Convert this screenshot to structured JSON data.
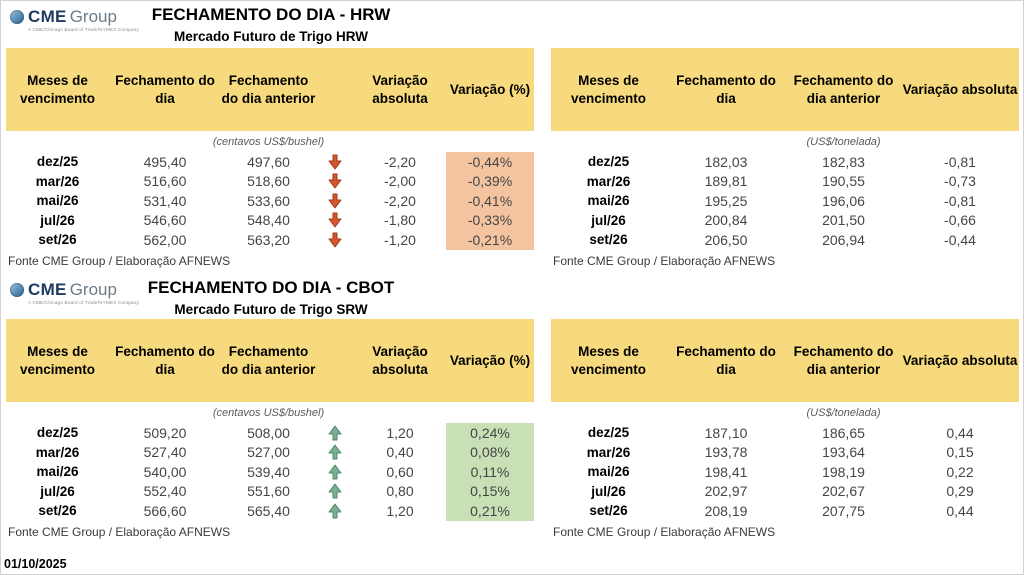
{
  "page": {
    "date": "01/10/2025"
  },
  "colors": {
    "header_bg": "#F6DA7D",
    "pct_down_bg": "#F4C4A0",
    "pct_up_bg": "#C9DFB6",
    "arrow_down": "#D4562E",
    "arrow_down_border": "#9E3B1B",
    "arrow_up": "#7BAE92",
    "arrow_up_border": "#4E8A6C"
  },
  "logo": {
    "cme": "CME",
    "group": "Group",
    "tagline": "A CME/Chicago Board of Trade/NYMEX Company"
  },
  "sections": [
    {
      "title": "FECHAMENTO DO DIA - HRW",
      "subtitle": "Mercado Futuro de Trigo HRW",
      "left_table": {
        "headers": [
          "Meses de vencimento",
          "Fechamento do dia",
          "Fechamento do dia anterior",
          "Variação absoluta",
          "Variação (%)"
        ],
        "unit": "(centavos US$/bushel)",
        "trend": "down",
        "source": "Fonte CME Group / Elaboração AFNEWS",
        "rows": [
          {
            "month": "dez/25",
            "close": "495,40",
            "prev": "497,60",
            "abs": "-2,20",
            "pct": "-0,44%"
          },
          {
            "month": "mar/26",
            "close": "516,60",
            "prev": "518,60",
            "abs": "-2,00",
            "pct": "-0,39%"
          },
          {
            "month": "mai/26",
            "close": "531,40",
            "prev": "533,60",
            "abs": "-2,20",
            "pct": "-0,41%"
          },
          {
            "month": "jul/26",
            "close": "546,60",
            "prev": "548,40",
            "abs": "-1,80",
            "pct": "-0,33%"
          },
          {
            "month": "set/26",
            "close": "562,00",
            "prev": "563,20",
            "abs": "-1,20",
            "pct": "-0,21%"
          }
        ]
      },
      "right_table": {
        "headers": [
          "Meses de vencimento",
          "Fechamento do dia",
          "Fechamento do dia anterior",
          "Variação absoluta"
        ],
        "unit": "(US$/tonelada)",
        "source": "Fonte CME Group / Elaboração AFNEWS",
        "rows": [
          {
            "month": "dez/25",
            "close": "182,03",
            "prev": "182,83",
            "abs": "-0,81"
          },
          {
            "month": "mar/26",
            "close": "189,81",
            "prev": "190,55",
            "abs": "-0,73"
          },
          {
            "month": "mai/26",
            "close": "195,25",
            "prev": "196,06",
            "abs": "-0,81"
          },
          {
            "month": "jul/26",
            "close": "200,84",
            "prev": "201,50",
            "abs": "-0,66"
          },
          {
            "month": "set/26",
            "close": "206,50",
            "prev": "206,94",
            "abs": "-0,44"
          }
        ]
      }
    },
    {
      "title": "FECHAMENTO DO DIA - CBOT",
      "subtitle": "Mercado Futuro de Trigo SRW",
      "left_table": {
        "headers": [
          "Meses de vencimento",
          "Fechamento do dia",
          "Fechamento do dia anterior",
          "Variação absoluta",
          "Variação (%)"
        ],
        "unit": "(centavos US$/bushel)",
        "trend": "up",
        "source": "Fonte CME Group / Elaboração AFNEWS",
        "rows": [
          {
            "month": "dez/25",
            "close": "509,20",
            "prev": "508,00",
            "abs": "1,20",
            "pct": "0,24%"
          },
          {
            "month": "mar/26",
            "close": "527,40",
            "prev": "527,00",
            "abs": "0,40",
            "pct": "0,08%"
          },
          {
            "month": "mai/26",
            "close": "540,00",
            "prev": "539,40",
            "abs": "0,60",
            "pct": "0,11%"
          },
          {
            "month": "jul/26",
            "close": "552,40",
            "prev": "551,60",
            "abs": "0,80",
            "pct": "0,15%"
          },
          {
            "month": "set/26",
            "close": "566,60",
            "prev": "565,40",
            "abs": "1,20",
            "pct": "0,21%"
          }
        ]
      },
      "right_table": {
        "headers": [
          "Meses de vencimento",
          "Fechamento do dia",
          "Fechamento do dia anterior",
          "Variação absoluta"
        ],
        "unit": "(US$/tonelada)",
        "source": "Fonte CME Group / Elaboração AFNEWS",
        "rows": [
          {
            "month": "dez/25",
            "close": "187,10",
            "prev": "186,65",
            "abs": "0,44"
          },
          {
            "month": "mar/26",
            "close": "193,78",
            "prev": "193,64",
            "abs": "0,15"
          },
          {
            "month": "mai/26",
            "close": "198,41",
            "prev": "198,19",
            "abs": "0,22"
          },
          {
            "month": "jul/26",
            "close": "202,97",
            "prev": "202,67",
            "abs": "0,29"
          },
          {
            "month": "set/26",
            "close": "208,19",
            "prev": "207,75",
            "abs": "0,44"
          }
        ]
      }
    }
  ]
}
